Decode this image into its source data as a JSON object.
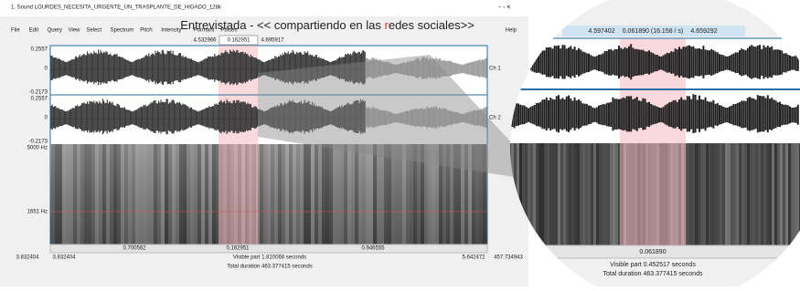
{
  "window": {
    "title": "1. Sound LOURDES_NECESITA_URGENTE_UN_TRASPLANTE_DE_HIGADO_128k",
    "menu": [
      "File",
      "Edit",
      "Query",
      "View",
      "Select",
      "Spectrum",
      "Pitch",
      "Intensity",
      "Formant",
      "Pulses"
    ],
    "help": "Help"
  },
  "caption": {
    "before": "Entrevistada - << compartiendo en las ",
    "highlight": "r",
    "after": "edes sociales>>"
  },
  "editor": {
    "selection_start": "4.532966",
    "selection_length": "0.162951",
    "selection_end": "4.695917",
    "channels": [
      {
        "max": "0.2557",
        "zero": "0",
        "min": "-0.2173",
        "label": "Ch 1"
      },
      {
        "max": "0.2557",
        "zero": "0",
        "min": "-0.2173",
        "label": "Ch 2"
      }
    ],
    "spectrum_top": "5000 Hz",
    "spectrum_cursor": "1651 Hz",
    "segments": [
      "0.700562",
      "0.162951",
      "0.946555"
    ],
    "window_start": "3.832404",
    "visible_start": "3.832404",
    "visible_part": "Visible part 1.810068 seconds",
    "visible_end": "5.642472",
    "window_end": "457.734943",
    "total": "Total duration 463.377415 seconds"
  },
  "zoom": {
    "selection_start": "4.597402",
    "selection_length": "0.061890 (16.158 / s)",
    "selection_end": "4.659292",
    "segment": "0.061890",
    "visible_part": "Visible part 0.452517 seconds",
    "total": "Total duration 463.377415 seconds"
  }
}
